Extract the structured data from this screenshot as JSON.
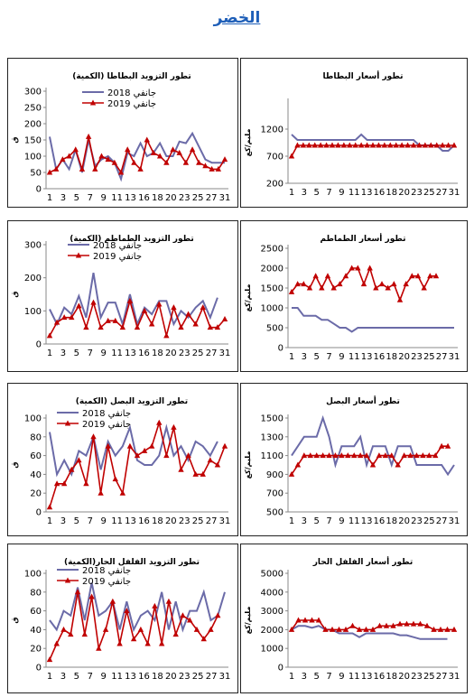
{
  "page": {
    "title": "الخضر"
  },
  "colors": {
    "s2018": "#6b6ba8",
    "s2019": "#c00000",
    "axis": "#888888"
  },
  "chart_data": [
    {
      "type": "line",
      "title": "تطور التزويد  البطاطا (الكمية)",
      "ylabel": "ق",
      "ylim": [
        0,
        300
      ],
      "yticks": [
        0,
        50,
        100,
        150,
        200,
        250,
        300
      ],
      "legend_position": "top-center",
      "series": [
        {
          "name": "جانفي 2018",
          "values": [
            160,
            60,
            90,
            60,
            120,
            50,
            150,
            70,
            90,
            100,
            80,
            30,
            110,
            100,
            140,
            100,
            110,
            140,
            100,
            100,
            145,
            140,
            170,
            130,
            90,
            80,
            80,
            80
          ]
        },
        {
          "name": "جانفي 2019",
          "values": [
            50,
            60,
            90,
            100,
            120,
            60,
            160,
            60,
            100,
            90,
            80,
            50,
            120,
            80,
            60,
            150,
            110,
            100,
            80,
            120,
            110,
            80,
            120,
            80,
            70,
            60,
            60,
            90
          ]
        }
      ]
    },
    {
      "type": "line",
      "title": "تطور أسعار البطاطا",
      "ylabel": "مليم/كغ",
      "ylim": [
        200,
        1700
      ],
      "yticks": [
        200,
        700,
        1200
      ],
      "legend_position": "top-center",
      "series": [
        {
          "name": "جانفي 2018",
          "values": [
            1100,
            1000,
            1000,
            1000,
            1000,
            1000,
            1000,
            1000,
            1000,
            1000,
            1000,
            1000,
            1100,
            1000,
            1000,
            1000,
            1000,
            1000,
            1000,
            1000,
            1000,
            1000,
            900,
            900,
            900,
            900,
            800,
            800,
            900
          ]
        },
        {
          "name": "جانفي 2019",
          "values": [
            700,
            900,
            900,
            900,
            900,
            900,
            900,
            900,
            900,
            900,
            900,
            900,
            900,
            900,
            900,
            900,
            900,
            900,
            900,
            900,
            900,
            900,
            900,
            900,
            900,
            900,
            900,
            900,
            900
          ]
        }
      ]
    },
    {
      "type": "line",
      "title": "تطور التزويد  الطماطم (الكمية)",
      "ylabel": "ق",
      "ylim": [
        0,
        300
      ],
      "yticks": [
        0,
        100,
        200,
        300
      ],
      "legend_position": "top-center",
      "series": [
        {
          "name": "جانفي 2018",
          "values": [
            105,
            60,
            110,
            90,
            145,
            80,
            215,
            80,
            125,
            125,
            60,
            150,
            60,
            110,
            90,
            130,
            130,
            60,
            100,
            80,
            110,
            130,
            80,
            140
          ]
        },
        {
          "name": "جانفي 2019",
          "values": [
            25,
            65,
            80,
            80,
            115,
            50,
            125,
            50,
            70,
            70,
            50,
            130,
            50,
            100,
            60,
            120,
            25,
            110,
            50,
            90,
            60,
            110,
            50,
            50,
            75
          ]
        }
      ]
    },
    {
      "type": "line",
      "title": "تطور أسعار الطماطم",
      "ylabel": "مليم/كغ",
      "ylim": [
        0,
        2500
      ],
      "yticks": [
        0,
        500,
        1000,
        1500,
        2000,
        2500
      ],
      "legend_position": "top-center",
      "series": [
        {
          "name": "جانفي 2018",
          "values": [
            1000,
            1000,
            800,
            800,
            800,
            700,
            700,
            600,
            500,
            500,
            400,
            500,
            500,
            500,
            500,
            500,
            500,
            500,
            500,
            500,
            500,
            500,
            500,
            500,
            500,
            500,
            500,
            500
          ]
        },
        {
          "name": "جانفي 2019",
          "values": [
            1400,
            1600,
            1600,
            1500,
            1800,
            1500,
            1800,
            1500,
            1600,
            1800,
            2000,
            2000,
            1600,
            2000,
            1500,
            1600,
            1500,
            1600,
            1200,
            1600,
            1800,
            1800,
            1500,
            1800,
            1800
          ]
        }
      ]
    },
    {
      "type": "line",
      "title": "تطور التزويد  البصل (الكمية)",
      "ylabel": "ق",
      "ylim": [
        0,
        100
      ],
      "yticks": [
        0,
        20,
        40,
        60,
        80,
        100
      ],
      "legend_position": "top-center",
      "series": [
        {
          "name": "جانفي 2018",
          "values": [
            85,
            40,
            55,
            40,
            65,
            60,
            80,
            45,
            75,
            60,
            70,
            90,
            55,
            50,
            50,
            60,
            90,
            60,
            70,
            55,
            75,
            70,
            60,
            75
          ]
        },
        {
          "name": "جانفي 2019",
          "values": [
            5,
            30,
            30,
            45,
            55,
            30,
            80,
            20,
            70,
            35,
            20,
            70,
            60,
            65,
            70,
            95,
            60,
            90,
            45,
            60,
            40,
            40,
            55,
            50,
            70
          ]
        }
      ]
    },
    {
      "type": "line",
      "title": "تطور أسعار البصل",
      "ylabel": "مليم/كغ",
      "ylim": [
        500,
        1500
      ],
      "yticks": [
        500,
        700,
        900,
        1100,
        1300,
        1500
      ],
      "legend_position": "top-center",
      "series": [
        {
          "name": "جانفي 2018",
          "values": [
            1100,
            1200,
            1300,
            1300,
            1300,
            1500,
            1300,
            1000,
            1200,
            1200,
            1200,
            1300,
            1000,
            1200,
            1200,
            1200,
            1000,
            1200,
            1200,
            1200,
            1000,
            1000,
            1000,
            1000,
            1000,
            900,
            1000
          ]
        },
        {
          "name": "جانفي 2019",
          "values": [
            900,
            1000,
            1100,
            1100,
            1100,
            1100,
            1100,
            1100,
            1100,
            1100,
            1100,
            1100,
            1100,
            1000,
            1100,
            1100,
            1100,
            1000,
            1100,
            1100,
            1100,
            1100,
            1100,
            1100,
            1200,
            1200
          ]
        }
      ]
    },
    {
      "type": "line",
      "title": "تطور التزويد  الفلفل الحار(الكمية)",
      "ylabel": "ق",
      "ylim": [
        0,
        100
      ],
      "yticks": [
        0,
        20,
        40,
        60,
        80,
        100
      ],
      "legend_position": "top-center",
      "series": [
        {
          "name": "جانفي 2018",
          "values": [
            50,
            40,
            60,
            55,
            85,
            50,
            90,
            55,
            60,
            70,
            40,
            70,
            40,
            55,
            60,
            50,
            80,
            40,
            70,
            40,
            60,
            60,
            80,
            50,
            55,
            80
          ]
        },
        {
          "name": "جانفي 2019",
          "values": [
            8,
            25,
            40,
            35,
            80,
            35,
            75,
            20,
            40,
            70,
            25,
            60,
            30,
            40,
            25,
            65,
            25,
            70,
            35,
            55,
            50,
            40,
            30,
            40,
            55
          ]
        }
      ]
    },
    {
      "type": "line",
      "title": "تطور أسعار الفلفل الحار",
      "ylabel": "مليم/كغ",
      "ylim": [
        0,
        5000
      ],
      "yticks": [
        0,
        1000,
        2000,
        3000,
        4000,
        5000
      ],
      "legend_position": "top-center",
      "series": [
        {
          "name": "جانفي 2018",
          "values": [
            2000,
            2200,
            2200,
            2100,
            2200,
            2000,
            2000,
            1800,
            1800,
            1800,
            1600,
            1800,
            1800,
            1800,
            1800,
            1800,
            1700,
            1700,
            1600,
            1500,
            1500,
            1500,
            1500,
            1500
          ]
        },
        {
          "name": "جانفي 2019",
          "values": [
            2000,
            2500,
            2500,
            2500,
            2500,
            2000,
            2000,
            2000,
            2000,
            2200,
            2000,
            2000,
            2000,
            2200,
            2200,
            2200,
            2300,
            2300,
            2300,
            2300,
            2200,
            2000,
            2000,
            2000,
            2000
          ]
        }
      ]
    }
  ],
  "xticks": [
    "1",
    "3",
    "5",
    "7",
    "9",
    "11",
    "13",
    "16",
    "18",
    "20",
    "23",
    "25",
    "27",
    "31"
  ]
}
